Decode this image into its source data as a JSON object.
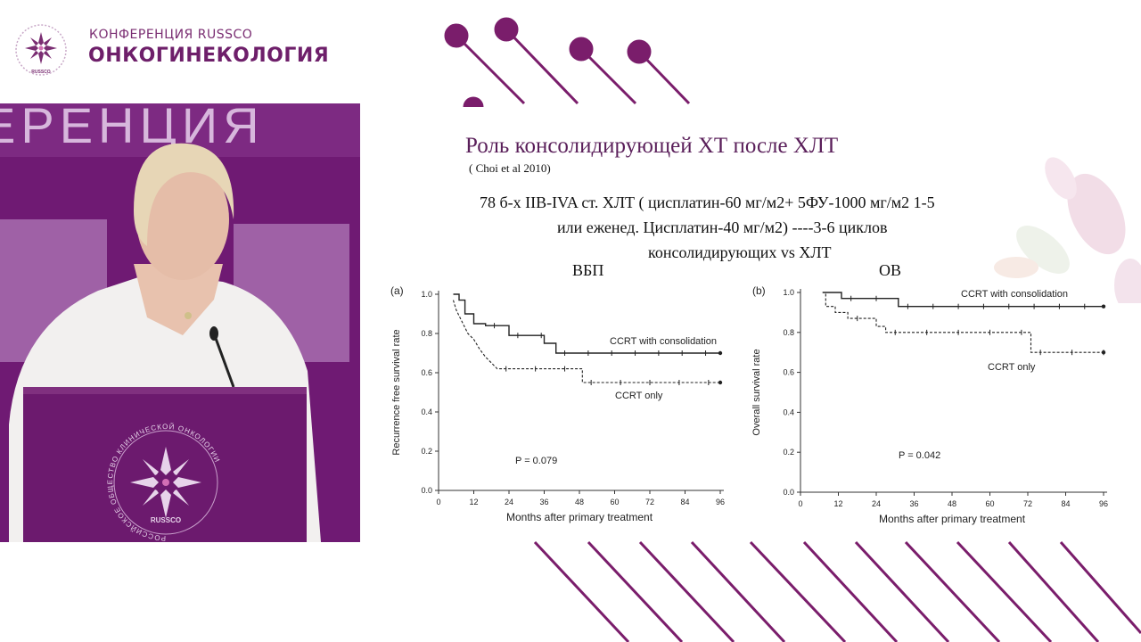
{
  "header": {
    "conference_name": "КОНФЕРЕНЦИЯ RUSSCO",
    "topic": "ОНКОГИНЕКОЛОГИЯ",
    "logo_caption": "RUSSCO"
  },
  "video": {
    "backdrop_text": "ЕРЕНЦИЯ",
    "podium_logo_ring_text": "РОССИЙСКОЕ ОБЩЕСТВО КЛИНИЧЕСКОЙ ОНКОЛОГИИ",
    "podium_logo_caption": "RUSSCO"
  },
  "slide": {
    "title": "Роль консолидирующей ХТ после ХЛТ",
    "citation": "( Choi et al 2010)",
    "body_lines": [
      "78 б-х IIB-IVA ст. ХЛТ ( цисплатин-60 мг/м2+ 5ФУ-1000 мг/м2  1-5",
      "или еженед. Цисплатин-40 мг/м2) ----3-6 циклов",
      "консолидирующих vs ХЛТ"
    ],
    "left_label": "ВБП",
    "right_label": "ОВ"
  },
  "chart_data": [
    {
      "type": "line",
      "panel": "(a)",
      "ylabel": "Recurrence free survival rate",
      "xlabel": "Months after primary treatment",
      "xlim": [
        0,
        96
      ],
      "ylim": [
        0,
        1.0
      ],
      "x_ticks": [
        "0",
        "12",
        "24",
        "36",
        "48",
        "60",
        "72",
        "84",
        "96"
      ],
      "y_ticks": [
        "0.0",
        "0.2",
        "0.4",
        "0.6",
        "0.8",
        "1.0"
      ],
      "series": [
        {
          "name": "CCRT with consolidation",
          "style": "solid",
          "x": [
            5,
            7,
            7,
            9,
            9,
            12,
            12,
            16,
            16,
            24,
            24,
            36,
            36,
            40,
            40,
            96
          ],
          "y": [
            1.0,
            1.0,
            0.97,
            0.97,
            0.9,
            0.9,
            0.85,
            0.85,
            0.84,
            0.84,
            0.79,
            0.79,
            0.75,
            0.75,
            0.7,
            0.7
          ]
        },
        {
          "name": "CCRT only",
          "style": "dashed",
          "x": [
            5,
            6,
            8,
            10,
            12,
            14,
            16,
            18,
            20,
            49,
            49,
            96
          ],
          "y": [
            0.97,
            0.92,
            0.86,
            0.8,
            0.77,
            0.72,
            0.68,
            0.65,
            0.62,
            0.62,
            0.55,
            0.55
          ]
        }
      ],
      "annotation": "P = 0.079"
    },
    {
      "type": "line",
      "panel": "(b)",
      "ylabel": "Overall survival rate",
      "xlabel": "Months after primary treatment",
      "xlim": [
        0,
        96
      ],
      "ylim": [
        0,
        1.0
      ],
      "x_ticks": [
        "0",
        "12",
        "24",
        "36",
        "48",
        "60",
        "72",
        "84",
        "96"
      ],
      "y_ticks": [
        "0.0",
        "0.2",
        "0.4",
        "0.6",
        "0.8",
        "1.0"
      ],
      "series": [
        {
          "name": "CCRT with consolidation",
          "style": "solid",
          "x": [
            7,
            13,
            13,
            31,
            31,
            96
          ],
          "y": [
            1.0,
            1.0,
            0.97,
            0.97,
            0.93,
            0.93
          ]
        },
        {
          "name": "CCRT only",
          "style": "dashed",
          "x": [
            7,
            8,
            8,
            11,
            11,
            15,
            15,
            24,
            24,
            27,
            27,
            73,
            73,
            96
          ],
          "y": [
            1.0,
            1.0,
            0.93,
            0.93,
            0.9,
            0.9,
            0.87,
            0.87,
            0.83,
            0.83,
            0.8,
            0.8,
            0.7,
            0.7
          ]
        }
      ],
      "annotation": "P = 0.042"
    }
  ],
  "colors": {
    "brand_purple": "#6e1f6a",
    "backdrop_purple": "#7b1f7d",
    "deco_purple": "#7a1d6b"
  }
}
